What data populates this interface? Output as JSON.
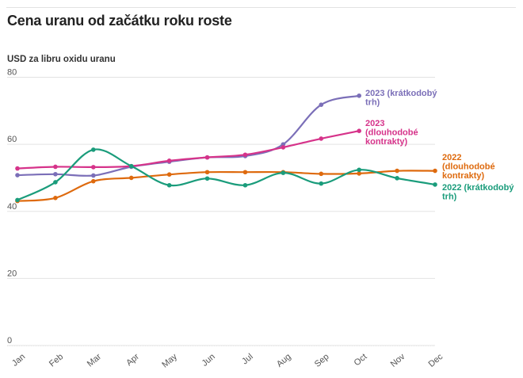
{
  "title": "Cena uranu od začátku roku roste",
  "chart_data": {
    "type": "line",
    "title": "Cena uranu od začátku roku roste",
    "ylabel": "USD za libru oxidu uranu",
    "xlabel": "",
    "categories": [
      "Jan",
      "Feb",
      "Mar",
      "Apr",
      "May",
      "Jun",
      "Jul",
      "Aug",
      "Sep",
      "Oct",
      "Nov",
      "Dec"
    ],
    "yticks": [
      0,
      20,
      40,
      60,
      80
    ],
    "ylim": [
      0,
      80
    ],
    "grid": true,
    "legend": "direct labels at line ends",
    "series": [
      {
        "name": "2023 (krátkodobý trh)",
        "label_lines": [
          "2023 (krátkodobý",
          "trh)"
        ],
        "color": "#7b6fb8",
        "values": [
          50.8,
          51.1,
          50.7,
          53.3,
          54.8,
          56.1,
          56.5,
          60.0,
          71.8,
          74.5,
          null,
          null
        ]
      },
      {
        "name": "2023 (dlouhodobé kontrakty)",
        "label_lines": [
          "2023",
          "(dlouhodobé",
          "kontrakty)"
        ],
        "color": "#d6338a",
        "values": [
          52.8,
          53.3,
          53.2,
          53.5,
          55.1,
          56.1,
          56.9,
          59.1,
          61.7,
          64.0,
          null,
          null
        ]
      },
      {
        "name": "2022 (dlouhodobé kontrakty)",
        "label_lines": [
          "2022",
          "(dlouhodobé",
          "kontrakty)"
        ],
        "color": "#de6a0e",
        "values": [
          43.1,
          44.0,
          49.0,
          50.0,
          51.0,
          51.7,
          51.7,
          51.7,
          51.2,
          51.3,
          52.1,
          52.1
        ]
      },
      {
        "name": "2022 (krátkodobý trh)",
        "label_lines": [
          "2022 (krátkodobý",
          "trh)"
        ],
        "color": "#1a9c7b",
        "values": [
          43.4,
          48.7,
          58.4,
          53.5,
          47.8,
          49.8,
          47.8,
          51.5,
          48.3,
          52.4,
          49.9,
          48.0
        ]
      }
    ]
  }
}
